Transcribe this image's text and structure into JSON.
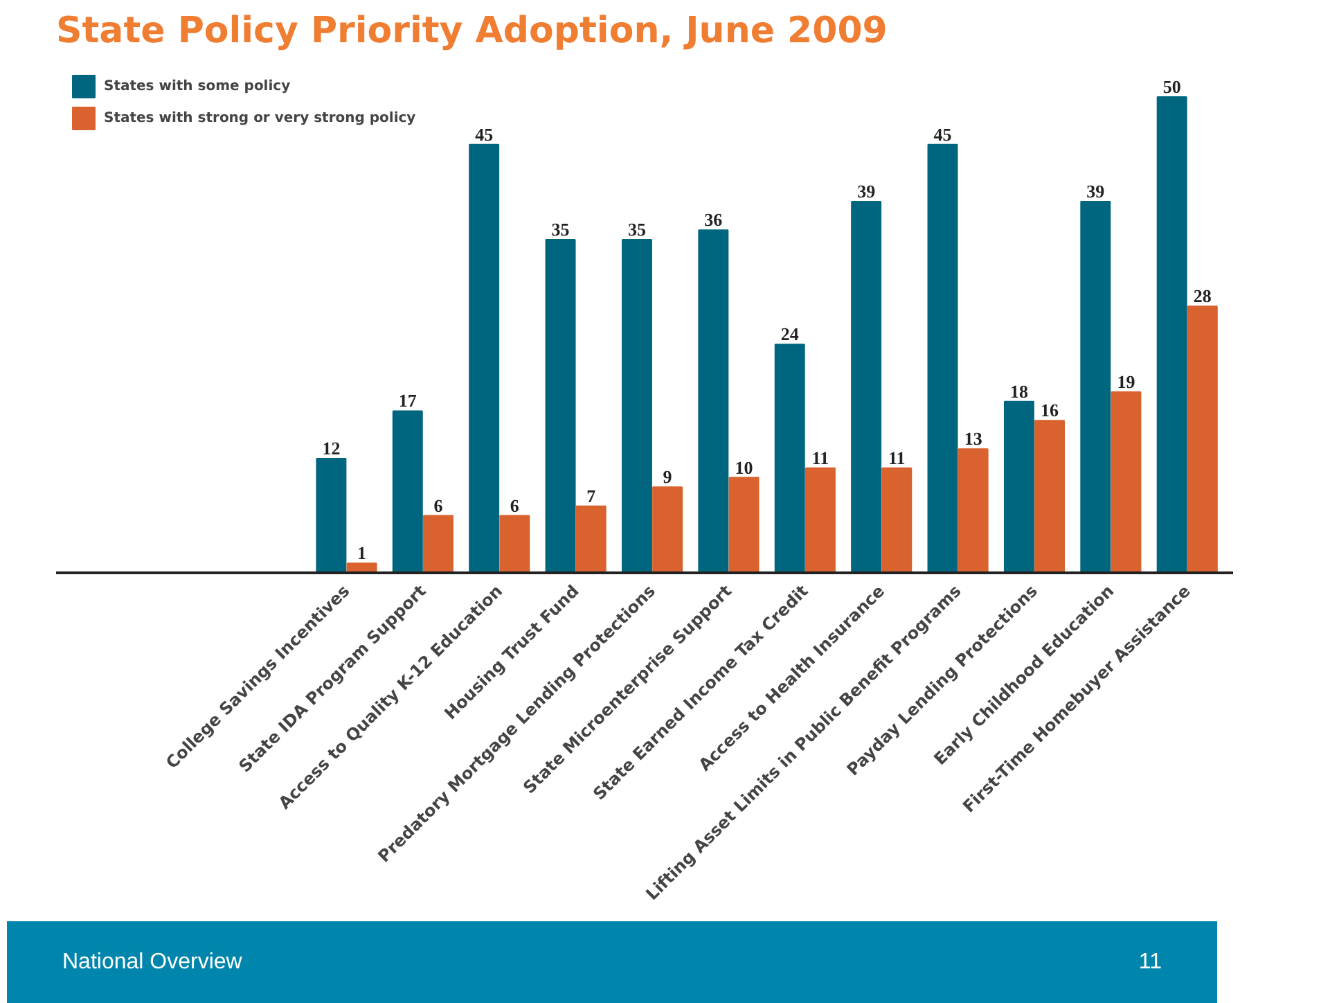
{
  "chart_data": {
    "type": "bar",
    "title": "State Policy Priority Adoption, June 2009",
    "categories": [
      "College Savings Incentives",
      "State IDA Program Support",
      "Access to Quality K-12 Education",
      "Housing Trust Fund",
      "Predatory Mortgage Lending Protections",
      "State Microenterprise Support",
      "State Earned Income Tax Credit",
      "Access to Health Insurance",
      "Lifting Asset Limits in Public Benefit Programs",
      "Payday Lending Protections",
      "Early Childhood Education",
      "First-Time Homebuyer Assistance"
    ],
    "series": [
      {
        "name": "States with some policy",
        "color": "#00657f",
        "values": [
          12,
          17,
          45,
          35,
          35,
          36,
          24,
          39,
          45,
          18,
          39,
          50
        ]
      },
      {
        "name": "States with strong or very strong policy",
        "color": "#d9622e",
        "values": [
          1,
          6,
          6,
          7,
          9,
          10,
          11,
          11,
          13,
          16,
          19,
          28
        ]
      }
    ],
    "data_labels": true,
    "legend": "top left",
    "grid": false,
    "annotations": [
      "National Overview",
      "11"
    ]
  }
}
